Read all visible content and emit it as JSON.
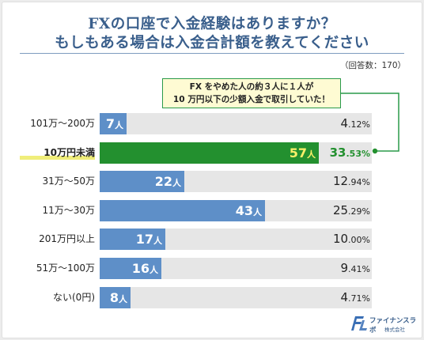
{
  "title": {
    "line1": "FXの口座で入金経験はありますか？",
    "line2": "もしもある場合は入金合計額を教えてください"
  },
  "response_count": "（回答数：170）",
  "callout": {
    "line1": "FX をやめた人の約３人に１人が",
    "line2": "10 万円以下の少額入金で取引していた！"
  },
  "colors": {
    "bar": "#5e8fc8",
    "highlight_bar": "#23902f",
    "track": "#e6e6e6",
    "title": "#3a5f8c",
    "callout_bg": "#fefbd3",
    "highlight_value": "#fbf06a",
    "highlight_underline": "#f0ee7a"
  },
  "chart_data": {
    "type": "bar",
    "orientation": "horizontal",
    "categories": [
      "101万～200万",
      "10万円未満",
      "31万～50万",
      "11万～30万",
      "201万円以上",
      "51万～100万",
      "ない(0円)"
    ],
    "values": [
      7,
      57,
      22,
      43,
      17,
      16,
      8
    ],
    "value_unit": "人",
    "percent_labels": [
      "4.12%",
      "33.53%",
      "12.94%",
      "25.29%",
      "10.00%",
      "9.41%",
      "4.71%"
    ],
    "highlight_index": 1,
    "xlim": [
      0,
      57
    ]
  },
  "logo": {
    "name": "ファイナンスラボ",
    "corp": "株式会社",
    "mark": "FL"
  }
}
